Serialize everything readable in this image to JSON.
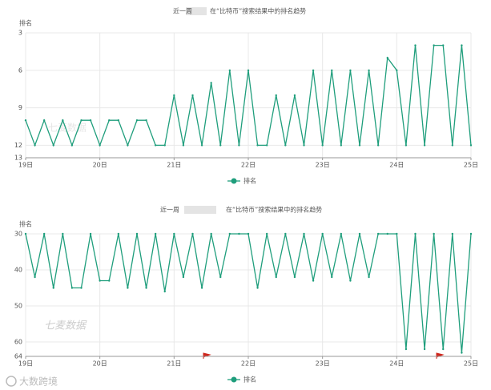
{
  "chart_data": [
    {
      "type": "line",
      "title_prefix": "近一周",
      "title": "在“比特币”搜索结果中的排名趋势",
      "y_label": "排名",
      "x": [
        19,
        19.125,
        19.25,
        19.375,
        19.5,
        19.625,
        19.75,
        19.875,
        20,
        20.125,
        20.25,
        20.375,
        20.5,
        20.625,
        20.75,
        20.875,
        21,
        21.125,
        21.25,
        21.375,
        21.5,
        21.625,
        21.75,
        21.875,
        22,
        22.125,
        22.25,
        22.375,
        22.5,
        22.625,
        22.75,
        22.875,
        23,
        23.125,
        23.25,
        23.375,
        23.5,
        23.625,
        23.75,
        23.875,
        24,
        24.125,
        24.25,
        24.375,
        24.5,
        24.625,
        24.75,
        24.875,
        25
      ],
      "series": [
        {
          "name": "排名",
          "color": "#1f9e7c",
          "values": [
            10,
            12,
            10,
            12,
            10,
            12,
            10,
            10,
            12,
            10,
            10,
            12,
            10,
            10,
            12,
            12,
            8,
            12,
            8,
            12,
            7,
            12,
            6,
            12,
            6,
            12,
            12,
            8,
            12,
            8,
            12,
            6,
            12,
            6,
            12,
            6,
            12,
            6,
            12,
            5,
            6,
            12,
            4,
            12,
            4,
            4,
            12,
            4,
            12
          ]
        }
      ],
      "xlim": [
        19,
        25
      ],
      "xticks": [
        {
          "value": 19,
          "label": "19日"
        },
        {
          "value": 20,
          "label": "20日"
        },
        {
          "value": 21,
          "label": "21日"
        },
        {
          "value": 22,
          "label": "22日"
        },
        {
          "value": 23,
          "label": "23日"
        },
        {
          "value": 24,
          "label": "24日"
        },
        {
          "value": 25,
          "label": "25日"
        }
      ],
      "ylim": [
        13,
        3
      ],
      "yticks": [
        3,
        6,
        9,
        12,
        13
      ],
      "grid": true,
      "legend": "bottom",
      "watermark": "七麦数据"
    },
    {
      "type": "line",
      "title_prefix": "近一周",
      "title": "在“比特币”搜索结果中的排名趋势",
      "y_label": "排名",
      "x": [
        19,
        19.125,
        19.25,
        19.375,
        19.5,
        19.625,
        19.75,
        19.875,
        20,
        20.125,
        20.25,
        20.375,
        20.5,
        20.625,
        20.75,
        20.875,
        21,
        21.125,
        21.25,
        21.375,
        21.5,
        21.625,
        21.75,
        21.875,
        22,
        22.125,
        22.25,
        22.375,
        22.5,
        22.625,
        22.75,
        22.875,
        23,
        23.125,
        23.25,
        23.375,
        23.5,
        23.625,
        23.75,
        23.875,
        24,
        24.125,
        24.25,
        24.375,
        24.5,
        24.625,
        24.75,
        24.875,
        25
      ],
      "series": [
        {
          "name": "排名",
          "color": "#1f9e7c",
          "values": [
            30,
            42,
            30,
            45,
            30,
            45,
            45,
            30,
            43,
            43,
            30,
            45,
            30,
            45,
            30,
            46,
            30,
            42,
            30,
            45,
            30,
            42,
            30,
            30,
            30,
            45,
            30,
            42,
            30,
            42,
            30,
            43,
            30,
            42,
            30,
            43,
            30,
            42,
            30,
            30,
            30,
            62,
            30,
            62,
            30,
            62,
            30,
            63,
            30
          ]
        }
      ],
      "xlim": [
        19,
        25
      ],
      "xticks": [
        {
          "value": 19,
          "label": "19日"
        },
        {
          "value": 20,
          "label": "20日"
        },
        {
          "value": 21,
          "label": "21日"
        },
        {
          "value": 22,
          "label": "22日"
        },
        {
          "value": 23,
          "label": "23日"
        },
        {
          "value": 24,
          "label": "24日"
        },
        {
          "value": 25,
          "label": "25日"
        }
      ],
      "ylim": [
        64,
        30
      ],
      "yticks": [
        30,
        40,
        50,
        60,
        64
      ],
      "grid": true,
      "legend": "bottom",
      "watermark": "七麦数据"
    }
  ],
  "footer_watermark": "大数跨境"
}
